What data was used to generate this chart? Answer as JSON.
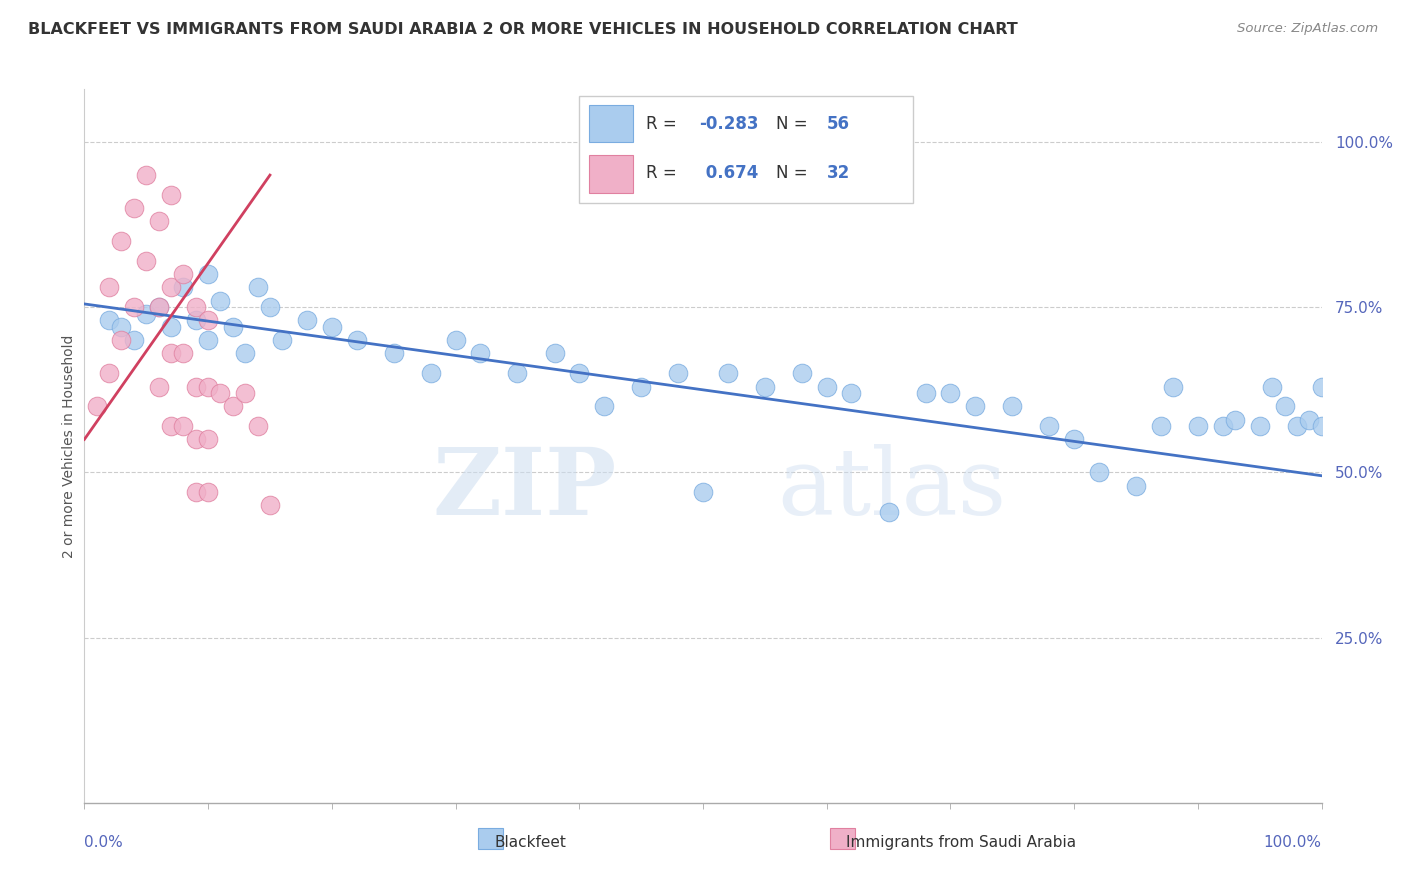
{
  "title": "BLACKFEET VS IMMIGRANTS FROM SAUDI ARABIA 2 OR MORE VEHICLES IN HOUSEHOLD CORRELATION CHART",
  "source": "Source: ZipAtlas.com",
  "ylabel": "2 or more Vehicles in Household",
  "xlim": [
    0.0,
    100.0
  ],
  "ylim": [
    0.0,
    108.0
  ],
  "yticks": [
    25.0,
    50.0,
    75.0,
    100.0
  ],
  "ytick_labels": [
    "25.0%",
    "50.0%",
    "75.0%",
    "100.0%"
  ],
  "xtick_left_label": "0.0%",
  "xtick_right_label": "100.0%",
  "blue_color": "#aaccee",
  "blue_edge": "#7aace0",
  "pink_color": "#f0b0c8",
  "pink_edge": "#e080a0",
  "blue_line_color": "#4472c4",
  "pink_line_color": "#d04060",
  "R_blue": -0.283,
  "N_blue": 56,
  "R_pink": 0.674,
  "N_pink": 32,
  "watermark_zip": "ZIP",
  "watermark_atlas": "atlas",
  "legend_label_blue": "Blackfeet",
  "legend_label_pink": "Immigrants from Saudi Arabia",
  "blue_x": [
    2,
    3,
    4,
    5,
    6,
    7,
    8,
    9,
    10,
    10,
    11,
    12,
    13,
    14,
    15,
    16,
    18,
    20,
    22,
    25,
    28,
    30,
    32,
    35,
    38,
    40,
    42,
    45,
    48,
    50,
    52,
    55,
    58,
    60,
    62,
    65,
    68,
    70,
    72,
    75,
    78,
    80,
    82,
    85,
    87,
    88,
    90,
    92,
    93,
    95,
    96,
    97,
    98,
    99,
    100,
    100
  ],
  "blue_y": [
    73,
    72,
    70,
    74,
    75,
    72,
    78,
    73,
    80,
    70,
    76,
    72,
    68,
    78,
    75,
    70,
    73,
    72,
    70,
    68,
    65,
    70,
    68,
    65,
    68,
    65,
    60,
    63,
    65,
    47,
    65,
    63,
    65,
    63,
    62,
    44,
    62,
    62,
    60,
    60,
    57,
    55,
    50,
    48,
    57,
    63,
    57,
    57,
    58,
    57,
    63,
    60,
    57,
    58,
    63,
    57
  ],
  "pink_x": [
    1,
    2,
    2,
    3,
    3,
    4,
    4,
    5,
    5,
    6,
    6,
    6,
    7,
    7,
    7,
    7,
    8,
    8,
    8,
    9,
    9,
    9,
    9,
    10,
    10,
    10,
    10,
    11,
    12,
    13,
    14,
    15
  ],
  "pink_y": [
    60,
    78,
    65,
    85,
    70,
    90,
    75,
    95,
    82,
    88,
    75,
    63,
    92,
    78,
    68,
    57,
    80,
    68,
    57,
    75,
    63,
    55,
    47,
    73,
    63,
    55,
    47,
    62,
    60,
    62,
    57,
    45
  ],
  "blue_line_x0": 0,
  "blue_line_x1": 100,
  "blue_line_y0": 75.5,
  "blue_line_y1": 49.5,
  "pink_line_x0": 0,
  "pink_line_x1": 15,
  "pink_line_y0": 55,
  "pink_line_y1": 95
}
